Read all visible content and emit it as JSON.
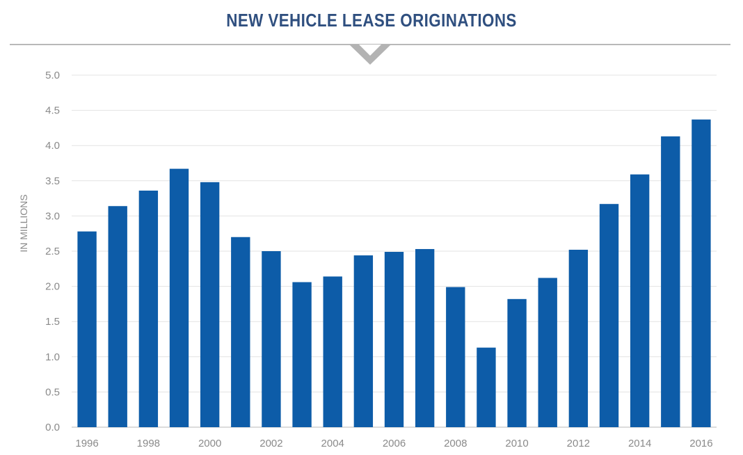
{
  "chart_data": {
    "type": "bar",
    "title": "NEW VEHICLE LEASE ORIGINATIONS",
    "ylabel": "IN MILLIONS",
    "xlabel": "",
    "categories": [
      "1996",
      "1997",
      "1998",
      "1999",
      "2000",
      "2001",
      "2002",
      "2003",
      "2004",
      "2005",
      "2006",
      "2007",
      "2008",
      "2009",
      "2010",
      "2011",
      "2012",
      "2013",
      "2014",
      "2015",
      "2016"
    ],
    "x_tick_labels": [
      "1996",
      "1998",
      "2000",
      "2002",
      "2004",
      "2006",
      "2008",
      "2010",
      "2012",
      "2014",
      "2016"
    ],
    "y_tick_labels": [
      "0.0",
      "0.5",
      "1.0",
      "1.5",
      "2.0",
      "2.5",
      "3.0",
      "3.5",
      "4.0",
      "4.5",
      "5.0"
    ],
    "values": [
      2.78,
      3.14,
      3.36,
      3.67,
      3.48,
      2.7,
      2.5,
      2.06,
      2.14,
      2.44,
      2.49,
      2.53,
      1.99,
      1.13,
      1.82,
      2.12,
      2.52,
      3.17,
      3.59,
      4.13,
      4.37
    ],
    "ylim": [
      0,
      5.0
    ],
    "grid": true,
    "legend": "none",
    "colors": {
      "bar": "#0d5ca8",
      "title": "#2f4f7f",
      "grid": "#e3e3e3",
      "divider": "#b8b8b8",
      "text": "#8a8a8a"
    }
  }
}
